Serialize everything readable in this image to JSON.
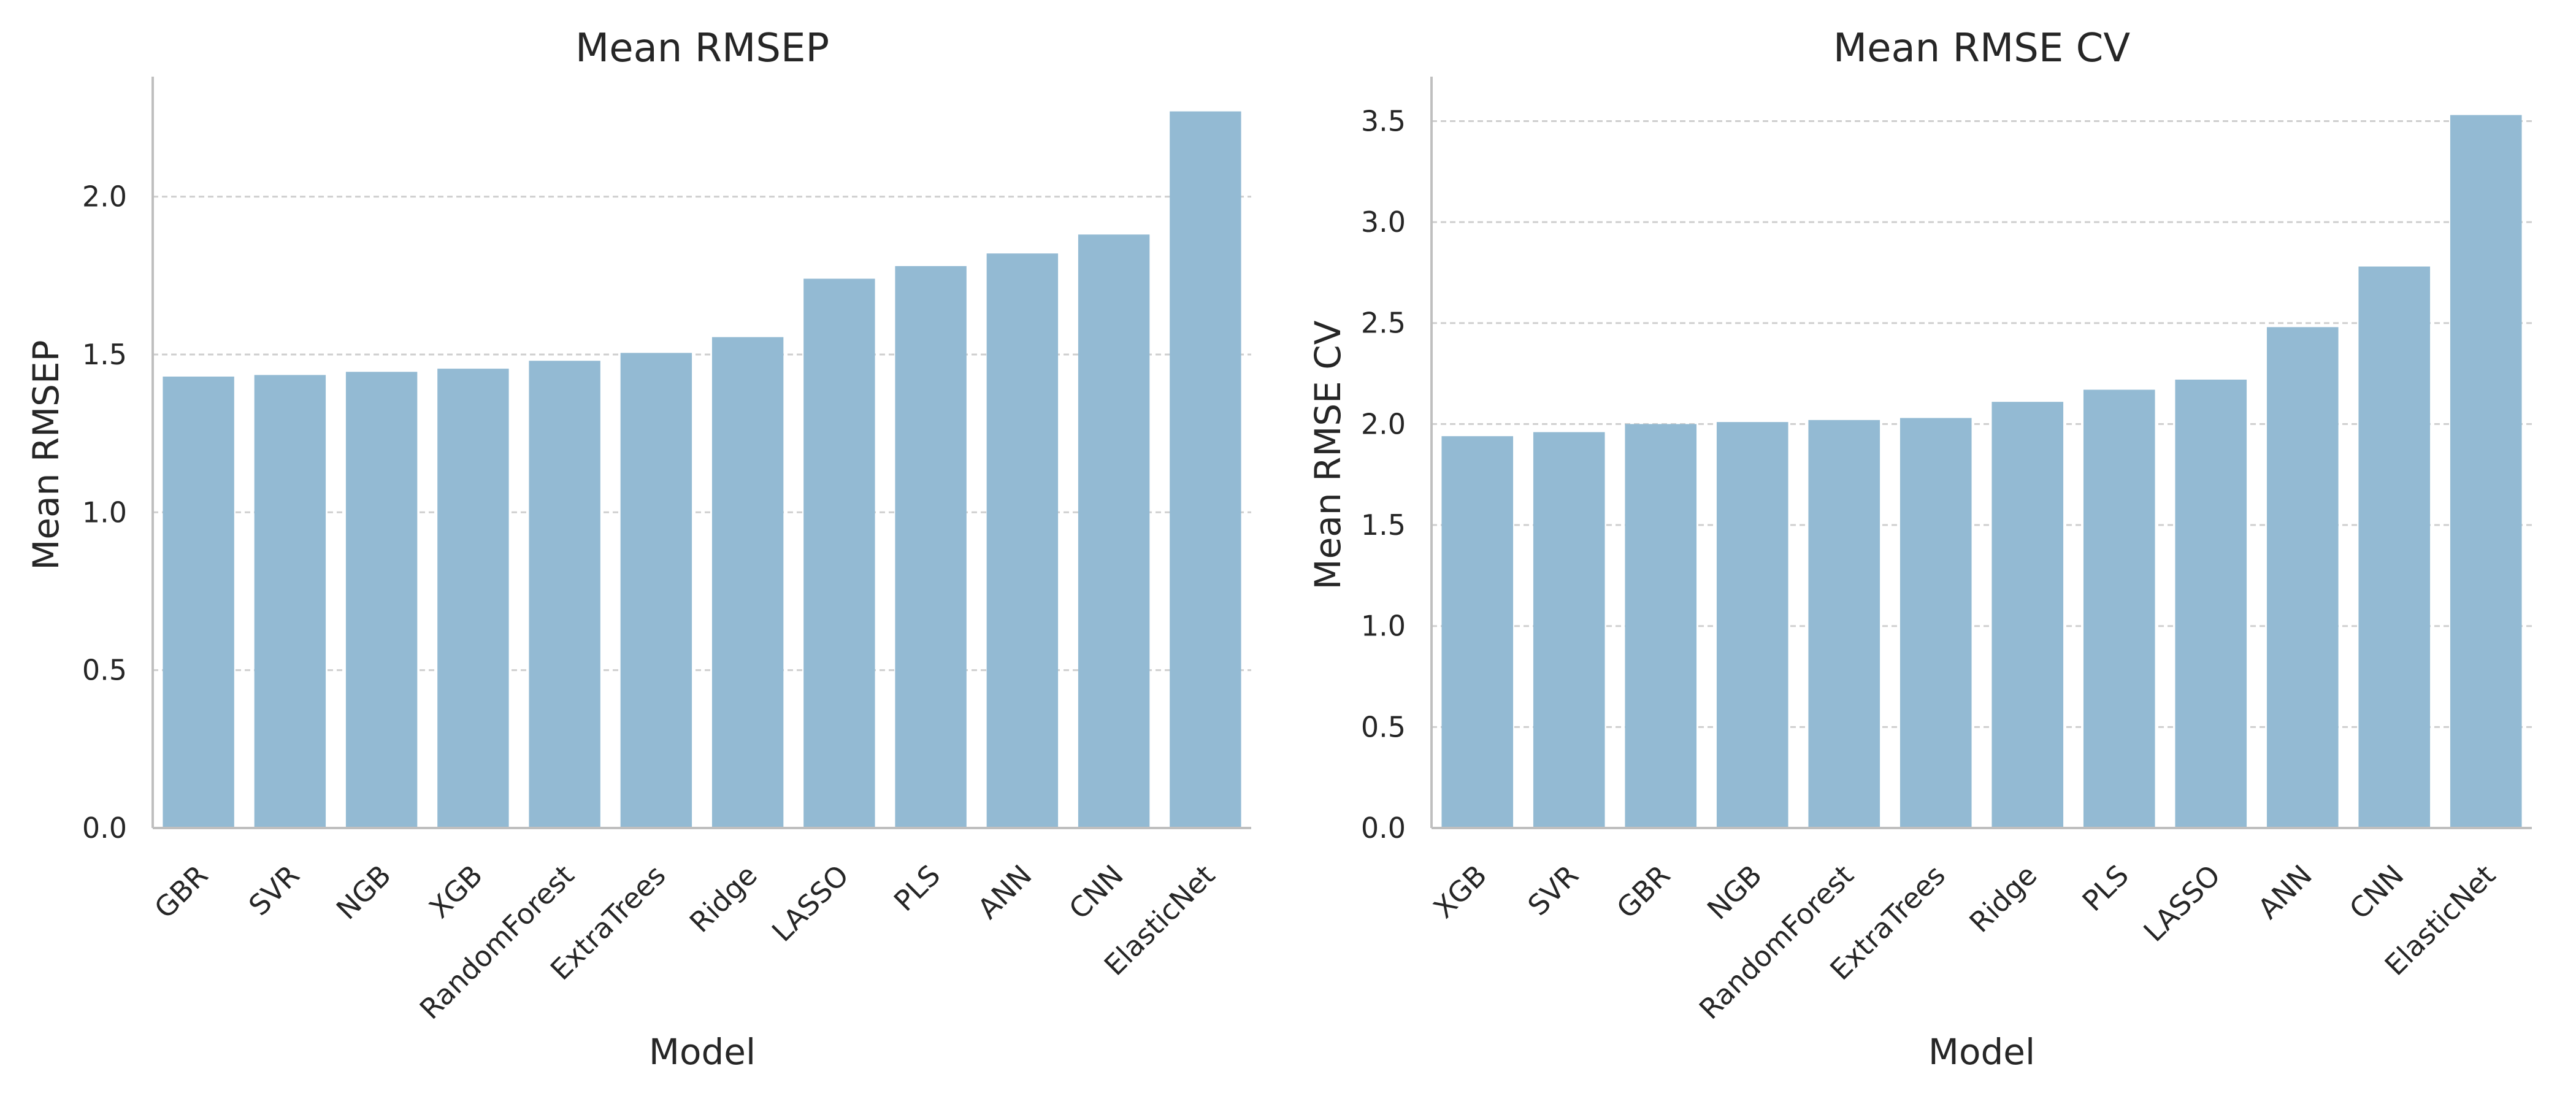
{
  "chart_data": [
    {
      "type": "bar",
      "title": "Mean RMSEP",
      "xlabel": "Model",
      "ylabel": "Mean RMSEP",
      "categories": [
        "GBR",
        "SVR",
        "NGB",
        "XGB",
        "RandomForest",
        "ExtraTrees",
        "Ridge",
        "LASSO",
        "PLS",
        "ANN",
        "CNN",
        "ElasticNet"
      ],
      "values": [
        1.43,
        1.435,
        1.445,
        1.455,
        1.48,
        1.505,
        1.555,
        1.74,
        1.78,
        1.82,
        1.88,
        2.27
      ],
      "ylim": [
        0,
        2.38
      ],
      "yticks": [
        0.0,
        0.5,
        1.0,
        1.5,
        2.0
      ],
      "ytick_labels": [
        "0.0",
        "0.5",
        "1.0",
        "1.5",
        "2.0"
      ],
      "grid": "y dashed",
      "bar_color": "#93bad3"
    },
    {
      "type": "bar",
      "title": "Mean RMSE CV",
      "xlabel": "Model",
      "ylabel": "Mean RMSE CV",
      "categories": [
        "XGB",
        "SVR",
        "GBR",
        "NGB",
        "RandomForest",
        "ExtraTrees",
        "Ridge",
        "PLS",
        "LASSO",
        "ANN",
        "CNN",
        "ElasticNet"
      ],
      "values": [
        1.94,
        1.96,
        2.0,
        2.01,
        2.02,
        2.03,
        2.11,
        2.17,
        2.22,
        2.48,
        2.78,
        3.53
      ],
      "ylim": [
        0,
        3.72
      ],
      "yticks": [
        0.0,
        0.5,
        1.0,
        1.5,
        2.0,
        2.5,
        3.0,
        3.5
      ],
      "ytick_labels": [
        "0.0",
        "0.5",
        "1.0",
        "1.5",
        "2.0",
        "2.5",
        "3.0",
        "3.5"
      ],
      "grid": "y dashed",
      "bar_color": "#93bad3"
    }
  ]
}
